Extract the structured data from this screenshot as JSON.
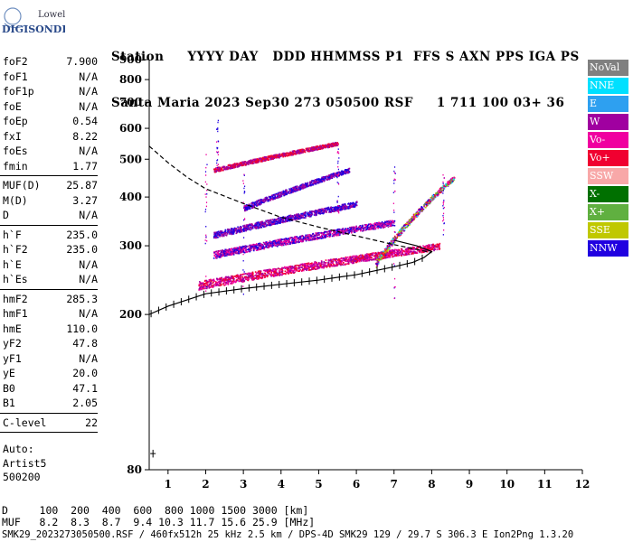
{
  "logo": {
    "line1": "Lowell",
    "line2": "DIGISONDE"
  },
  "header": {
    "labels_line": "Station     YYYY DAY   DDD HHMMSS P1  FFS S AXN PPS IGA PS",
    "values_line": "Santa Maria 2023 Sep30 273 050500 RSF     1 711 100 03+ 36"
  },
  "params_group1": [
    {
      "name": "foF2",
      "value": "7.900"
    },
    {
      "name": "foF1",
      "value": "N/A"
    },
    {
      "name": "foF1p",
      "value": "N/A"
    },
    {
      "name": "foE",
      "value": "N/A"
    },
    {
      "name": "foEp",
      "value": "0.54"
    },
    {
      "name": "fxI",
      "value": "8.22"
    },
    {
      "name": "foEs",
      "value": "N/A"
    },
    {
      "name": "fmin",
      "value": "1.77"
    }
  ],
  "params_group2": [
    {
      "name": "MUF(D)",
      "value": "25.87"
    },
    {
      "name": "M(D)",
      "value": "3.27"
    },
    {
      "name": "D",
      "value": "N/A"
    }
  ],
  "params_group3": [
    {
      "name": "h`F",
      "value": "235.0"
    },
    {
      "name": "h`F2",
      "value": "235.0"
    },
    {
      "name": "h`E",
      "value": "N/A"
    },
    {
      "name": "h`Es",
      "value": "N/A"
    }
  ],
  "params_group4": [
    {
      "name": "hmF2",
      "value": "285.3"
    },
    {
      "name": "hmF1",
      "value": "N/A"
    },
    {
      "name": "hmE",
      "value": "110.0"
    },
    {
      "name": "yF2",
      "value": "47.8"
    },
    {
      "name": "yF1",
      "value": "N/A"
    },
    {
      "name": "yE",
      "value": "20.0"
    },
    {
      "name": "B0",
      "value": "47.1"
    },
    {
      "name": "B1",
      "value": "2.05"
    }
  ],
  "clevel": {
    "name": "C-level",
    "value": "22"
  },
  "auto": {
    "line1": "Auto:",
    "line2": "Artist5",
    "line3": "500200"
  },
  "legend": [
    {
      "label": "NoVal",
      "color": "#808080"
    },
    {
      "label": "NNE",
      "color": "#00e0ff"
    },
    {
      "label": "E",
      "color": "#2ea0f0"
    },
    {
      "label": "W",
      "color": "#a000a0"
    },
    {
      "label": "Vo-",
      "color": "#f000a0"
    },
    {
      "label": "Vo+",
      "color": "#f00030"
    },
    {
      "label": "SSW",
      "color": "#f8a8a8"
    },
    {
      "label": "X-",
      "color": "#007000"
    },
    {
      "label": "X+",
      "color": "#60b040"
    },
    {
      "label": "SSE",
      "color": "#c0c800"
    },
    {
      "label": "NNW",
      "color": "#2000e0"
    }
  ],
  "muf_table": {
    "d_line": "D     100  200  400  600  800 1000 1500 3000 [km]",
    "muf_line": "MUF   8.2  8.3  8.7  9.4 10.3 11.7 15.6 25.9 [MHz]"
  },
  "footer": "SMK29_2023273050500.RSF / 460fx512h 25 kHz 2.5 km / DPS-4D SMK29 129 / 29.7 S 306.3 E Ion2Png 1.3.20",
  "chart_data": {
    "type": "scatter",
    "title": "",
    "xlabel": "",
    "ylabel": "",
    "xlim": [
      0.5,
      12
    ],
    "ylim": [
      80,
      900
    ],
    "x_ticks": [
      1,
      2,
      3,
      4,
      5,
      6,
      7,
      8,
      9,
      10,
      11,
      12
    ],
    "y_ticks": [
      80,
      200,
      300,
      400,
      500,
      600,
      700,
      800,
      900
    ],
    "y_scale": "log",
    "grid": false,
    "profile_dashed": [
      [
        0.5,
        540
      ],
      [
        1,
        490
      ],
      [
        1.5,
        450
      ],
      [
        2,
        420
      ],
      [
        3,
        385
      ],
      [
        4,
        355
      ],
      [
        5,
        335
      ],
      [
        6,
        318
      ],
      [
        7,
        302
      ],
      [
        7.5,
        295
      ],
      [
        8,
        288
      ]
    ],
    "virtual_height_trace": [
      [
        0.5,
        200
      ],
      [
        1,
        210
      ],
      [
        2,
        226
      ],
      [
        3,
        233
      ],
      [
        4,
        239
      ],
      [
        5,
        245
      ],
      [
        6,
        253
      ],
      [
        7,
        265
      ],
      [
        7.5,
        272
      ],
      [
        7.8,
        280
      ],
      [
        8,
        290
      ],
      [
        7.6,
        300
      ],
      [
        7,
        310
      ]
    ],
    "echo_bands": [
      {
        "x_start": 1.8,
        "x_end": 8.2,
        "h_start": 238,
        "h_end": 300,
        "colors": [
          "#f000a0",
          "#a000a0",
          "#f00030"
        ]
      },
      {
        "x_start": 2.2,
        "x_end": 7.0,
        "h_start": 285,
        "h_end": 345,
        "colors": [
          "#a000a0",
          "#f000a0",
          "#2000e0"
        ]
      },
      {
        "x_start": 2.2,
        "x_end": 6.0,
        "h_start": 320,
        "h_end": 385,
        "colors": [
          "#2000e0",
          "#a000a0"
        ]
      },
      {
        "x_start": 3.0,
        "x_end": 5.8,
        "h_start": 375,
        "h_end": 470,
        "colors": [
          "#2000e0",
          "#a000a0"
        ]
      },
      {
        "x_start": 2.2,
        "x_end": 5.5,
        "h_start": 470,
        "h_end": 550,
        "colors": [
          "#f00030",
          "#a000a0"
        ]
      },
      {
        "x_start": 6.5,
        "x_end": 8.6,
        "h_start": 270,
        "h_end": 450,
        "colors": [
          "#a000a0",
          "#f000a0",
          "#f00030",
          "#60b040",
          "#c0c800",
          "#2000e0",
          "#00e0ff"
        ]
      }
    ]
  }
}
